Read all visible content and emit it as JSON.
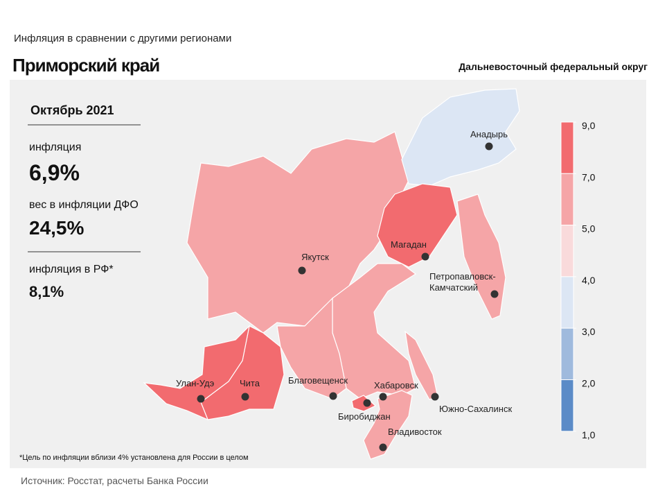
{
  "header": {
    "subtitle": "Инфляция в сравнении с другими регионами",
    "title": "Приморский край",
    "district": "Дальневосточный федеральный округ"
  },
  "panel": {
    "period": "Октябрь 2021",
    "items": [
      {
        "label": "инфляция",
        "value": "6,9%"
      },
      {
        "label": "вес в инфляции ДФО",
        "value": "24,5%"
      },
      {
        "label": "инфляция в РФ*",
        "value": "8,1%"
      }
    ]
  },
  "legend": {
    "ticks": [
      {
        "value": 9,
        "label": "9,0"
      },
      {
        "value": 7,
        "label": "7,0"
      },
      {
        "value": 5,
        "label": "5,0"
      },
      {
        "value": 4,
        "label": "4,0"
      },
      {
        "value": 3,
        "label": "3,0"
      },
      {
        "value": 2,
        "label": "2,0"
      },
      {
        "value": 1,
        "label": "1,0"
      }
    ],
    "colors": [
      "#f26b6f",
      "#f5a5a7",
      "#f9dadb",
      "#dce6f4",
      "#9fbadd",
      "#5b8bc7"
    ]
  },
  "cities": [
    {
      "lines": [
        "Анадырь"
      ]
    },
    {
      "lines": [
        "Магадан"
      ]
    },
    {
      "lines": [
        "Якутск"
      ]
    },
    {
      "lines": [
        "Петропавловск-",
        "Камчатский"
      ]
    },
    {
      "lines": [
        "Южно-Сахалинск"
      ]
    },
    {
      "lines": [
        "Хабаровск"
      ]
    },
    {
      "lines": [
        "Биробиджан"
      ]
    },
    {
      "lines": [
        "Благовещенск"
      ]
    },
    {
      "lines": [
        "Чита"
      ]
    },
    {
      "lines": [
        "Улан-Удэ"
      ]
    },
    {
      "lines": [
        "Владивосток"
      ]
    }
  ],
  "footnote": "*Цель по инфляции вблизи 4% установлена для России в целом",
  "source": "Источник: Росстат, расчеты Банка России"
}
